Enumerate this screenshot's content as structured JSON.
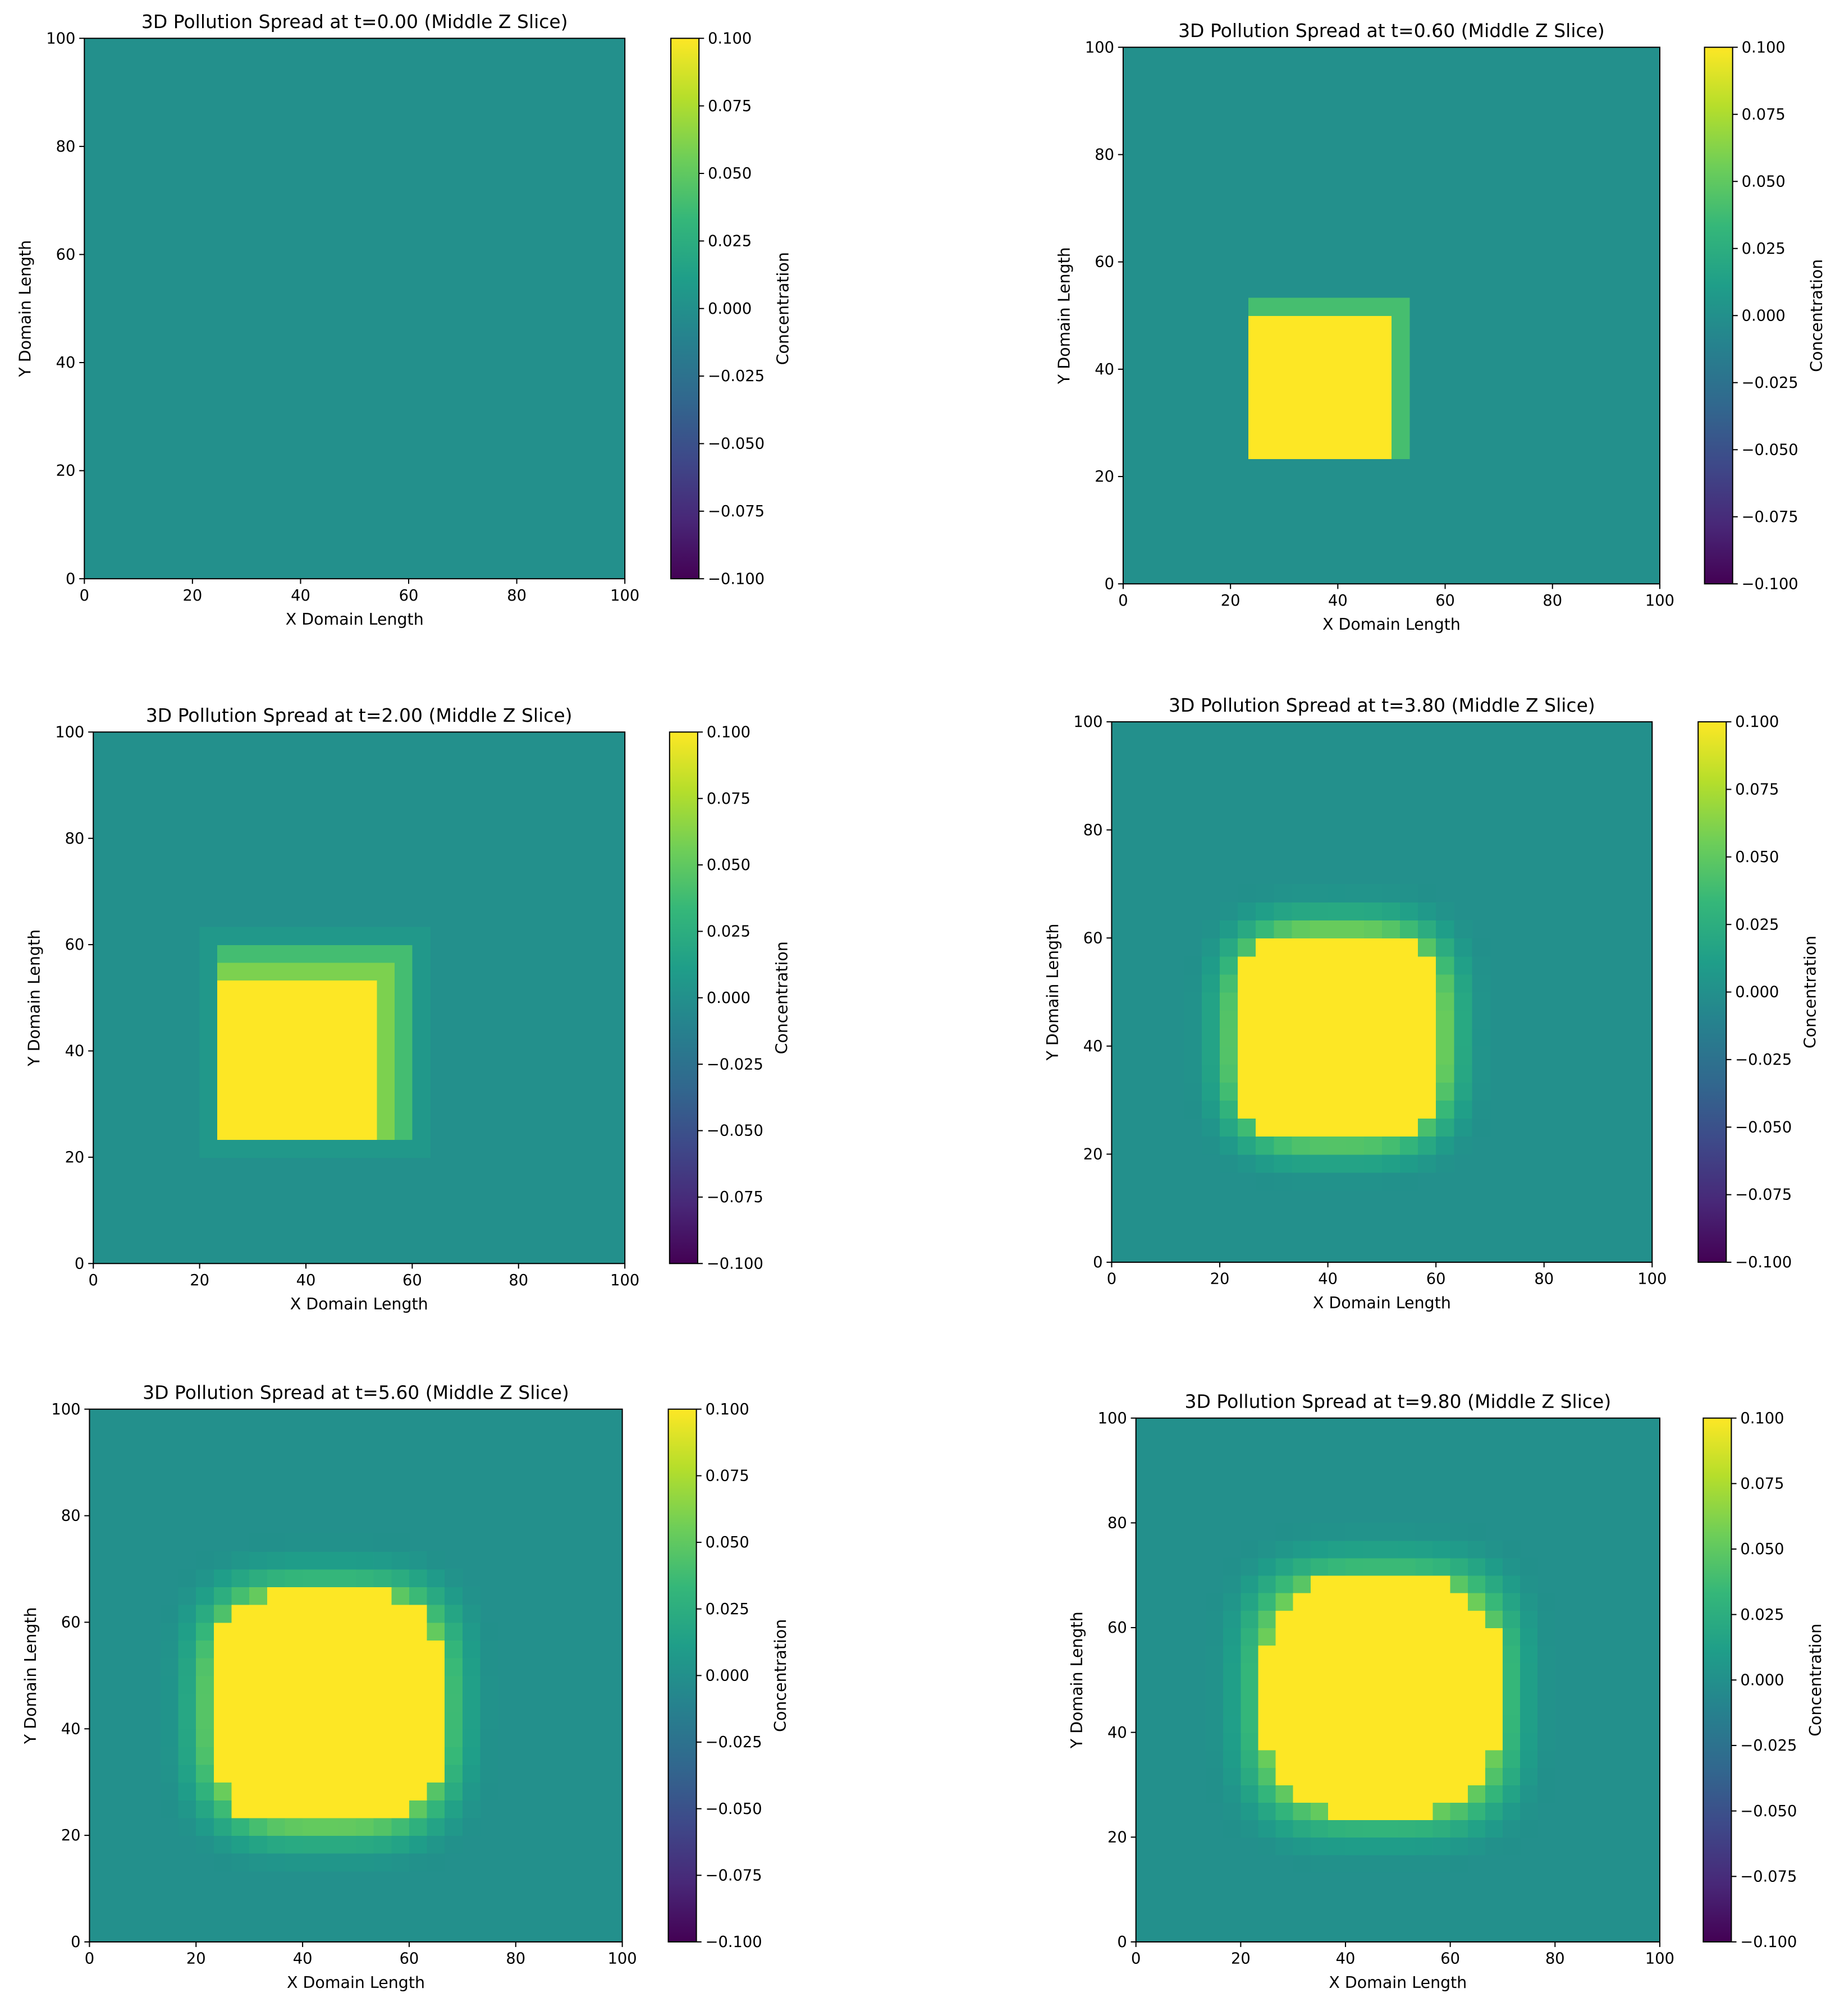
{
  "figure": {
    "colormap": "viridis",
    "color_stops": [
      "#440154",
      "#482878",
      "#3e4989",
      "#31688e",
      "#26828e",
      "#1f9e89",
      "#35b779",
      "#6ece58",
      "#b5de2b",
      "#fde725"
    ]
  },
  "chart_data": [
    {
      "type": "heatmap",
      "title": "3D Pollution Spread at t=0.00 (Middle Z Slice)",
      "xlabel": "X Domain Length",
      "ylabel": "Y Domain Length",
      "colorbar_label": "Concentration",
      "xlim": [
        0,
        100
      ],
      "ylim": [
        0,
        100
      ],
      "clim": [
        -0.1,
        0.1
      ],
      "xticks": [
        "0",
        "20",
        "40",
        "60",
        "80",
        "100"
      ],
      "yticks": [
        "0",
        "20",
        "40",
        "60",
        "80",
        "100"
      ],
      "cticks": [
        "−0.100",
        "−0.075",
        "−0.050",
        "−0.025",
        "0.000",
        "0.025",
        "0.050",
        "0.075",
        "0.100"
      ],
      "background_value": 0.0,
      "blob": null
    },
    {
      "type": "heatmap",
      "title": "3D Pollution Spread at t=0.60 (Middle Z Slice)",
      "xlabel": "X Domain Length",
      "ylabel": "Y Domain Length",
      "colorbar_label": "Concentration",
      "xlim": [
        0,
        100
      ],
      "ylim": [
        0,
        100
      ],
      "clim": [
        -0.1,
        0.1
      ],
      "xticks": [
        "0",
        "20",
        "40",
        "60",
        "80",
        "100"
      ],
      "yticks": [
        "0",
        "20",
        "40",
        "60",
        "80",
        "100"
      ],
      "cticks": [
        "−0.100",
        "−0.075",
        "−0.050",
        "−0.025",
        "0.000",
        "0.025",
        "0.050",
        "0.075",
        "0.100"
      ],
      "background_value": 0.0,
      "blob": {
        "x0": 23.3,
        "x1": 50,
        "y0": 23.3,
        "y1": 50,
        "halo": 0,
        "edge_right": 1,
        "edge_top": 1,
        "edge_value": 0.04,
        "peak_value": 0.1
      }
    },
    {
      "type": "heatmap",
      "title": "3D Pollution Spread at t=2.00 (Middle Z Slice)",
      "xlabel": "X Domain Length",
      "ylabel": "Y Domain Length",
      "colorbar_label": "Concentration",
      "xlim": [
        0,
        100
      ],
      "ylim": [
        0,
        100
      ],
      "clim": [
        -0.1,
        0.1
      ],
      "xticks": [
        "0",
        "20",
        "40",
        "60",
        "80",
        "100"
      ],
      "yticks": [
        "0",
        "20",
        "40",
        "60",
        "80",
        "100"
      ],
      "cticks": [
        "−0.100",
        "−0.075",
        "−0.050",
        "−0.025",
        "0.000",
        "0.025",
        "0.050",
        "0.075",
        "0.100"
      ],
      "background_value": 0.0,
      "blob": {
        "x0": 23.3,
        "x1": 53.3,
        "y0": 23.3,
        "y1": 53.3,
        "halo": 1,
        "edge_right": 2,
        "edge_top": 2,
        "edge_value": 0.06,
        "peak_value": 0.1
      }
    },
    {
      "type": "heatmap",
      "title": "3D Pollution Spread at t=3.80 (Middle Z Slice)",
      "xlabel": "X Domain Length",
      "ylabel": "Y Domain Length",
      "colorbar_label": "Concentration",
      "xlim": [
        0,
        100
      ],
      "ylim": [
        0,
        100
      ],
      "clim": [
        -0.1,
        0.1
      ],
      "xticks": [
        "0",
        "20",
        "40",
        "60",
        "80",
        "100"
      ],
      "yticks": [
        "0",
        "20",
        "40",
        "60",
        "80",
        "100"
      ],
      "cticks": [
        "−0.100",
        "−0.075",
        "−0.050",
        "−0.025",
        "0.000",
        "0.025",
        "0.050",
        "0.075",
        "0.100"
      ],
      "background_value": 0.0,
      "blob": {
        "cx": 42,
        "cy": 42,
        "r": 19.5,
        "core": 0.8,
        "fade": 9,
        "peak_value": 0.1
      }
    },
    {
      "type": "heatmap",
      "title": "3D Pollution Spread at t=5.60 (Middle Z Slice)",
      "xlabel": "X Domain Length",
      "ylabel": "Y Domain Length",
      "colorbar_label": "Concentration",
      "xlim": [
        0,
        100
      ],
      "ylim": [
        0,
        100
      ],
      "clim": [
        -0.1,
        0.1
      ],
      "xticks": [
        "0",
        "20",
        "40",
        "60",
        "80",
        "100"
      ],
      "yticks": [
        "0",
        "20",
        "40",
        "60",
        "80",
        "100"
      ],
      "cticks": [
        "−0.100",
        "−0.075",
        "−0.050",
        "−0.025",
        "0.000",
        "0.025",
        "0.050",
        "0.075",
        "0.100"
      ],
      "background_value": 0.0,
      "blob": {
        "cx": 44.5,
        "cy": 44,
        "r": 22,
        "core": 0.8,
        "fade": 10,
        "peak_value": 0.1
      }
    },
    {
      "type": "heatmap",
      "title": "3D Pollution Spread at t=9.80 (Middle Z Slice)",
      "xlabel": "X Domain Length",
      "ylabel": "Y Domain Length",
      "colorbar_label": "Concentration",
      "xlim": [
        0,
        100
      ],
      "ylim": [
        0,
        100
      ],
      "clim": [
        -0.1,
        0.1
      ],
      "xticks": [
        "0",
        "20",
        "40",
        "60",
        "80",
        "100"
      ],
      "yticks": [
        "0",
        "20",
        "40",
        "60",
        "80",
        "100"
      ],
      "cticks": [
        "−0.100",
        "−0.075",
        "−0.050",
        "−0.025",
        "0.000",
        "0.025",
        "0.050",
        "0.075",
        "0.100"
      ],
      "background_value": 0.0,
      "blob": {
        "cx": 46.7,
        "cy": 47,
        "r": 22.5,
        "core": 0.78,
        "fade": 11,
        "peak_value": 0.1
      }
    }
  ]
}
